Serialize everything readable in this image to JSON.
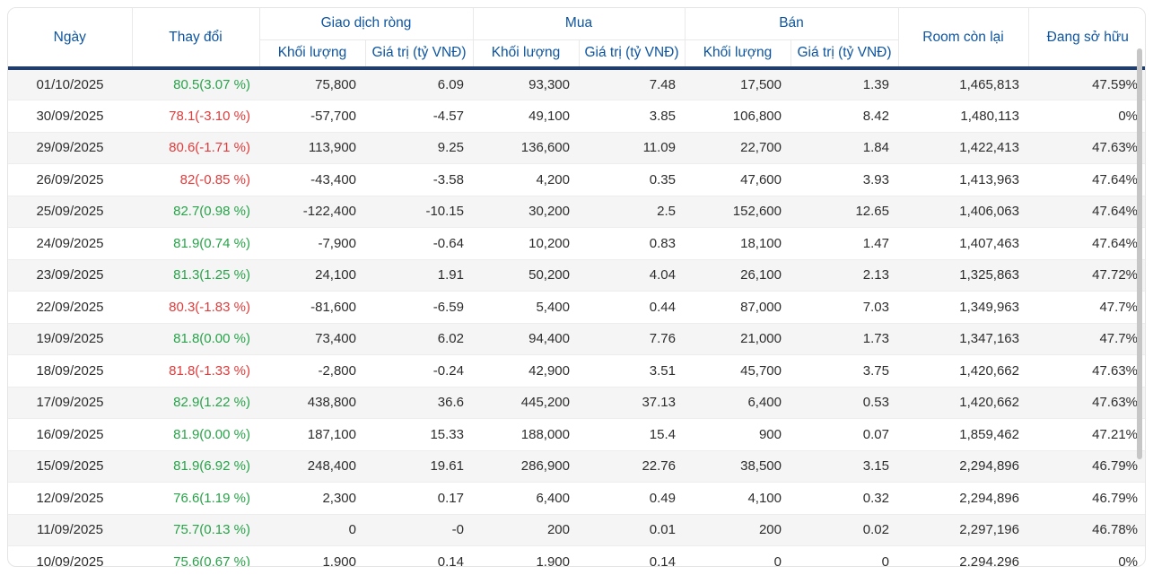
{
  "header": {
    "date": "Ngày",
    "change": "Thay đổi",
    "net": "Giao dịch ròng",
    "buy": "Mua",
    "sell": "Bán",
    "volume": "Khối lượng",
    "value": "Giá trị (tỷ VNĐ)",
    "room": "Room còn lại",
    "owned": "Đang sở hữu"
  },
  "colors": {
    "header_text": "#0e55a0",
    "header_divider": "#1f3e6d",
    "positive": "#27a348",
    "negative": "#e23b3b",
    "row_stripe": "#f5f5f6",
    "body_text": "#2d2d2d",
    "scrollbar": "#c6c6c6"
  },
  "chart_data": {
    "type": "table",
    "column_groups": [
      {
        "label": "Giao dịch ròng",
        "children": [
          "Khối lượng",
          "Giá trị (tỷ VNĐ)"
        ]
      },
      {
        "label": "Mua",
        "children": [
          "Khối lượng",
          "Giá trị (tỷ VNĐ)"
        ]
      },
      {
        "label": "Bán",
        "children": [
          "Khối lượng",
          "Giá trị (tỷ VNĐ)"
        ]
      }
    ],
    "columns": [
      "Ngày",
      "Thay đổi",
      "Giao dịch ròng - Khối lượng",
      "Giao dịch ròng - Giá trị (tỷ VNĐ)",
      "Mua - Khối lượng",
      "Mua - Giá trị (tỷ VNĐ)",
      "Bán - Khối lượng",
      "Bán - Giá trị (tỷ VNĐ)",
      "Room còn lại",
      "Đang sở hữu"
    ],
    "rows": [
      {
        "date": "01/10/2025",
        "change": "80.5(3.07 %)",
        "direction": "up",
        "net_volume": "75,800",
        "net_value": "6.09",
        "buy_volume": "93,300",
        "buy_value": "7.48",
        "sell_volume": "17,500",
        "sell_value": "1.39",
        "room": "1,465,813",
        "owned": "47.59%"
      },
      {
        "date": "30/09/2025",
        "change": "78.1(-3.10 %)",
        "direction": "down",
        "net_volume": "-57,700",
        "net_value": "-4.57",
        "buy_volume": "49,100",
        "buy_value": "3.85",
        "sell_volume": "106,800",
        "sell_value": "8.42",
        "room": "1,480,113",
        "owned": "0%"
      },
      {
        "date": "29/09/2025",
        "change": "80.6(-1.71 %)",
        "direction": "down",
        "net_volume": "113,900",
        "net_value": "9.25",
        "buy_volume": "136,600",
        "buy_value": "11.09",
        "sell_volume": "22,700",
        "sell_value": "1.84",
        "room": "1,422,413",
        "owned": "47.63%"
      },
      {
        "date": "26/09/2025",
        "change": "82(-0.85 %)",
        "direction": "down",
        "net_volume": "-43,400",
        "net_value": "-3.58",
        "buy_volume": "4,200",
        "buy_value": "0.35",
        "sell_volume": "47,600",
        "sell_value": "3.93",
        "room": "1,413,963",
        "owned": "47.64%"
      },
      {
        "date": "25/09/2025",
        "change": "82.7(0.98 %)",
        "direction": "up",
        "net_volume": "-122,400",
        "net_value": "-10.15",
        "buy_volume": "30,200",
        "buy_value": "2.5",
        "sell_volume": "152,600",
        "sell_value": "12.65",
        "room": "1,406,063",
        "owned": "47.64%"
      },
      {
        "date": "24/09/2025",
        "change": "81.9(0.74 %)",
        "direction": "up",
        "net_volume": "-7,900",
        "net_value": "-0.64",
        "buy_volume": "10,200",
        "buy_value": "0.83",
        "sell_volume": "18,100",
        "sell_value": "1.47",
        "room": "1,407,463",
        "owned": "47.64%"
      },
      {
        "date": "23/09/2025",
        "change": "81.3(1.25 %)",
        "direction": "up",
        "net_volume": "24,100",
        "net_value": "1.91",
        "buy_volume": "50,200",
        "buy_value": "4.04",
        "sell_volume": "26,100",
        "sell_value": "2.13",
        "room": "1,325,863",
        "owned": "47.72%"
      },
      {
        "date": "22/09/2025",
        "change": "80.3(-1.83 %)",
        "direction": "down",
        "net_volume": "-81,600",
        "net_value": "-6.59",
        "buy_volume": "5,400",
        "buy_value": "0.44",
        "sell_volume": "87,000",
        "sell_value": "7.03",
        "room": "1,349,963",
        "owned": "47.7%"
      },
      {
        "date": "19/09/2025",
        "change": "81.8(0.00 %)",
        "direction": "up",
        "net_volume": "73,400",
        "net_value": "6.02",
        "buy_volume": "94,400",
        "buy_value": "7.76",
        "sell_volume": "21,000",
        "sell_value": "1.73",
        "room": "1,347,163",
        "owned": "47.7%"
      },
      {
        "date": "18/09/2025",
        "change": "81.8(-1.33 %)",
        "direction": "down",
        "net_volume": "-2,800",
        "net_value": "-0.24",
        "buy_volume": "42,900",
        "buy_value": "3.51",
        "sell_volume": "45,700",
        "sell_value": "3.75",
        "room": "1,420,662",
        "owned": "47.63%"
      },
      {
        "date": "17/09/2025",
        "change": "82.9(1.22 %)",
        "direction": "up",
        "net_volume": "438,800",
        "net_value": "36.6",
        "buy_volume": "445,200",
        "buy_value": "37.13",
        "sell_volume": "6,400",
        "sell_value": "0.53",
        "room": "1,420,662",
        "owned": "47.63%"
      },
      {
        "date": "16/09/2025",
        "change": "81.9(0.00 %)",
        "direction": "up",
        "net_volume": "187,100",
        "net_value": "15.33",
        "buy_volume": "188,000",
        "buy_value": "15.4",
        "sell_volume": "900",
        "sell_value": "0.07",
        "room": "1,859,462",
        "owned": "47.21%"
      },
      {
        "date": "15/09/2025",
        "change": "81.9(6.92 %)",
        "direction": "up",
        "net_volume": "248,400",
        "net_value": "19.61",
        "buy_volume": "286,900",
        "buy_value": "22.76",
        "sell_volume": "38,500",
        "sell_value": "3.15",
        "room": "2,294,896",
        "owned": "46.79%"
      },
      {
        "date": "12/09/2025",
        "change": "76.6(1.19 %)",
        "direction": "up",
        "net_volume": "2,300",
        "net_value": "0.17",
        "buy_volume": "6,400",
        "buy_value": "0.49",
        "sell_volume": "4,100",
        "sell_value": "0.32",
        "room": "2,294,896",
        "owned": "46.79%"
      },
      {
        "date": "11/09/2025",
        "change": "75.7(0.13 %)",
        "direction": "up",
        "net_volume": "0",
        "net_value": "-0",
        "buy_volume": "200",
        "buy_value": "0.01",
        "sell_volume": "200",
        "sell_value": "0.02",
        "room": "2,297,196",
        "owned": "46.78%"
      },
      {
        "date": "10/09/2025",
        "change": "75.6(0.67 %)",
        "direction": "up",
        "net_volume": "1,900",
        "net_value": "0.14",
        "buy_volume": "1,900",
        "buy_value": "0.14",
        "sell_volume": "0",
        "sell_value": "0",
        "room": "2,294,296",
        "owned": "0%"
      }
    ]
  }
}
